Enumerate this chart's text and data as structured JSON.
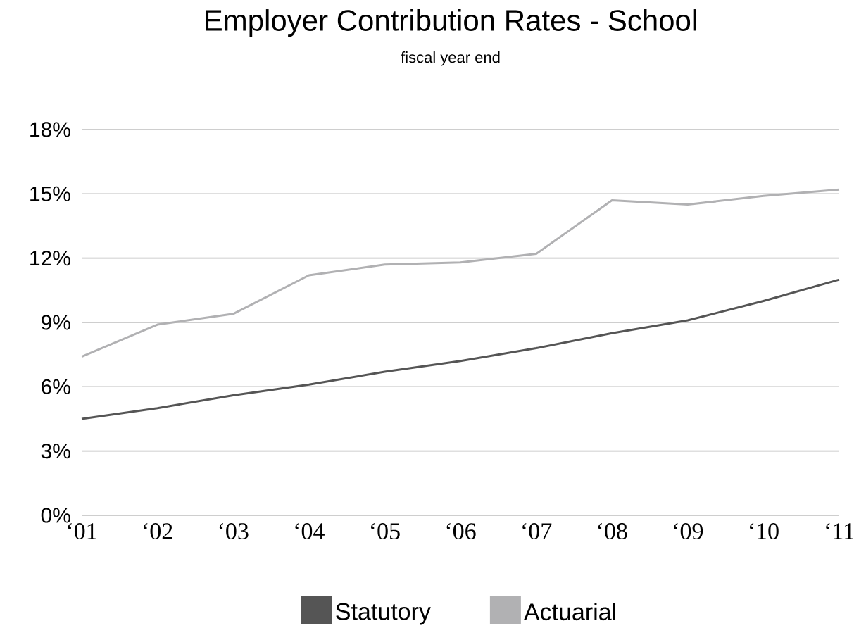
{
  "chart_data": {
    "type": "line",
    "title": "Employer Contribution Rates - School",
    "subtitle": "fiscal year end",
    "categories": [
      "‘01",
      "‘02",
      "‘03",
      "‘04",
      "‘05",
      "‘06",
      "‘07",
      "‘08",
      "‘09",
      "‘10",
      "‘11"
    ],
    "series": [
      {
        "name": "Statutory",
        "color": "#555555",
        "values": [
          4.5,
          5.0,
          5.6,
          6.1,
          6.7,
          7.2,
          7.8,
          8.5,
          9.1,
          10.0,
          11.0
        ]
      },
      {
        "name": "Actuarial",
        "color": "#b1b1b3",
        "values": [
          7.4,
          8.9,
          9.4,
          11.2,
          11.7,
          11.8,
          12.2,
          14.7,
          14.5,
          14.9,
          15.2
        ]
      }
    ],
    "ylim": [
      0,
      18
    ],
    "yticks": [
      {
        "value": 0,
        "label": "0%"
      },
      {
        "value": 3,
        "label": "3%"
      },
      {
        "value": 6,
        "label": "6%"
      },
      {
        "value": 9,
        "label": "9%"
      },
      {
        "value": 12,
        "label": "12%"
      },
      {
        "value": 15,
        "label": "15%"
      },
      {
        "value": 18,
        "label": "18%"
      }
    ],
    "grid": "y",
    "legend": "bottom",
    "marker": "none",
    "line_style": "solid"
  }
}
